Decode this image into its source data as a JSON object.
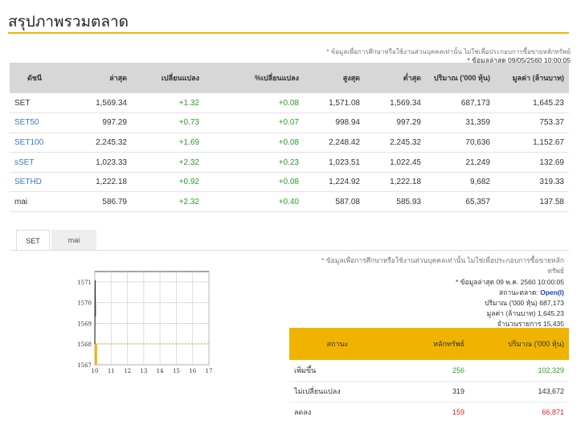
{
  "page": {
    "title": "สรุปภาพรวมตลาด"
  },
  "index_section": {
    "note": "* ข้อมูลเพื่อการศึกษาหรือใช้งานส่วนบุคคลเท่านั้น ไม่ใช่เพื่อประกอบการซื้อขายหลักทรัพย์",
    "asof": "* ข้อมูลล่าสุด 09/05/2560 10:00:05",
    "headers": [
      "ดัชนี",
      "ล่าสุด",
      "เปลี่ยนแปลง",
      "%เปลี่ยนแปลง",
      "สูงสุด",
      "ต่ำสุด",
      "ปริมาณ ('000 หุ้น)",
      "มูลค่า (ล้านบาท)"
    ],
    "rows": [
      {
        "name": "SET",
        "last": "1,569.34",
        "change": "+1.32",
        "pct": "+0.08",
        "high": "1,571.08",
        "low": "1,569.34",
        "volume": "687,173",
        "value": "1,645.23"
      },
      {
        "name": "SET50",
        "last": "997.29",
        "change": "+0.73",
        "pct": "+0.07",
        "high": "998.94",
        "low": "997.29",
        "volume": "31,359",
        "value": "753.37"
      },
      {
        "name": "SET100",
        "last": "2,245.32",
        "change": "+1.69",
        "pct": "+0.08",
        "high": "2,248.42",
        "low": "2,245.32",
        "volume": "70,636",
        "value": "1,152.67"
      },
      {
        "name": "sSET",
        "last": "1,023.33",
        "change": "+2.32",
        "pct": "+0.23",
        "high": "1,023.51",
        "low": "1,022.45",
        "volume": "21,249",
        "value": "132.69"
      },
      {
        "name": "SETHD",
        "last": "1,222.18",
        "change": "+0.92",
        "pct": "+0.08",
        "high": "1,224.92",
        "low": "1,222.18",
        "volume": "9,682",
        "value": "319.33"
      },
      {
        "name": "mai",
        "last": "586.79",
        "change": "+2.32",
        "pct": "+0.40",
        "high": "587.08",
        "low": "585.93",
        "volume": "65,357",
        "value": "137.58"
      }
    ]
  },
  "tabs": [
    "SET",
    "mai"
  ],
  "chart_data": {
    "type": "line",
    "title": "",
    "xlabel": "",
    "ylabel": "",
    "x_ticks": [
      "10",
      "11",
      "12",
      "13",
      "14",
      "15",
      "16",
      "17"
    ],
    "y_ticks": [
      "1567",
      "1568",
      "1569",
      "1570",
      "1571"
    ],
    "xlim": [
      10,
      17
    ],
    "ylim": [
      1567,
      1571.5
    ],
    "prev_close": 1568.02,
    "series": [
      {
        "name": "SET",
        "x": [
          10.0,
          10.02,
          10.04
        ],
        "values": [
          1568.0,
          1571.08,
          1569.34
        ]
      }
    ]
  },
  "market_summary": {
    "note": "* ข้อมูลเพื่อการศึกษาหรือใช้งานส่วนบุคคลเท่านั้น ไม่ใช่เพื่อประกอบการซื้อขายหลักทรัพย์",
    "asof": "* ข้อมูลล่าสุด 09 พ.ค. 2560 10:00:05",
    "status_label": "สถานะตลาด:",
    "status_value": "Open(I)",
    "volume_label": "ปริมาณ ('000 หุ้น)",
    "volume_value": "687,173",
    "value_label": "มูลค่า (ล้านบาท)",
    "value_value": "1,645.23",
    "deals_label": "จำนวนรายการ",
    "deals_value": "15,435"
  },
  "breadth": {
    "headers": [
      "สถานะ",
      "หลักทรัพย์",
      "ปริมาณ ('000 หุ้น)"
    ],
    "rows": [
      {
        "label": "เพิ่มขึ้น",
        "count": "256",
        "volume": "102,329",
        "tone": "g"
      },
      {
        "label": "ไม่เปลี่ยนแปลง",
        "count": "319",
        "volume": "143,672",
        "tone": "k"
      },
      {
        "label": "ลดลง",
        "count": "159",
        "volume": "66,871",
        "tone": "rd"
      }
    ]
  },
  "colors": {
    "accent": "#f0b400",
    "up": "#27a127",
    "down": "#e02020",
    "link": "#3a79c4",
    "header_bg": "#d7d7d7"
  }
}
